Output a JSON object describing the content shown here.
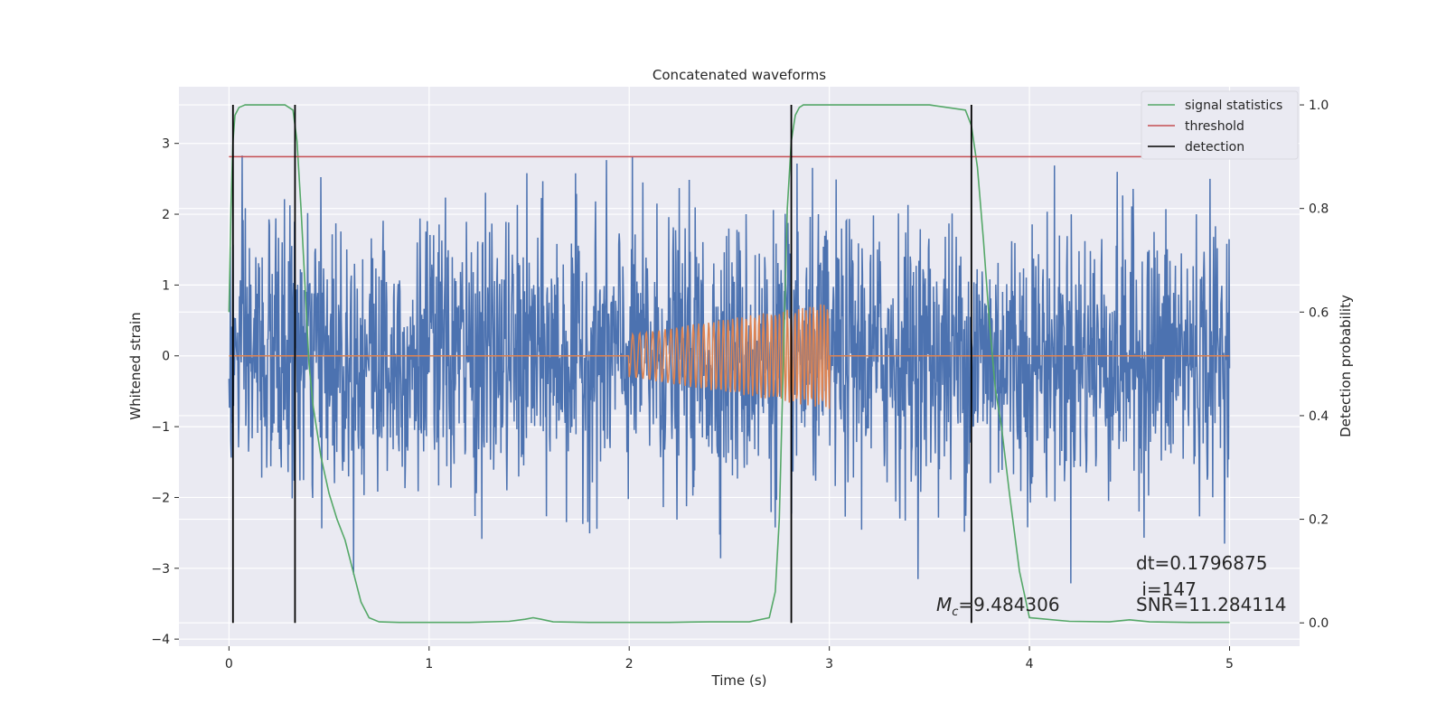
{
  "chart_data": {
    "type": "line",
    "title": "Concatenated waveforms",
    "xlabel": "Time (s)",
    "ylabel_left": "Whitened strain",
    "ylabel_right": "Detection probability",
    "xlim": [
      -0.25,
      5.35
    ],
    "ylim_left": [
      -4.1,
      3.8
    ],
    "ylim_right": [
      -0.045,
      1.035
    ],
    "x_ticks": [
      0,
      1,
      2,
      3,
      4,
      5
    ],
    "y_ticks_left": [
      -4,
      -3,
      -2,
      -1,
      0,
      1,
      2,
      3
    ],
    "y_ticks_right": [
      0.0,
      0.2,
      0.4,
      0.6,
      0.8,
      1.0
    ],
    "y_tick_labels_left": [
      "−4",
      "−3",
      "−2",
      "−1",
      "0",
      "1",
      "2",
      "3"
    ],
    "y_tick_labels_right": [
      "0.0",
      "0.2",
      "0.4",
      "0.6",
      "0.8",
      "1.0"
    ],
    "grid": true,
    "legend_position": "top-right",
    "series": [
      {
        "kind": "noise",
        "color": "#4c72b0",
        "x_range": [
          0,
          5
        ],
        "note_range_y": [
          -3.7,
          3.5
        ]
      },
      {
        "kind": "chirp",
        "color": "#dd8452",
        "x_range": [
          0,
          5
        ],
        "chirp_start": 2.0,
        "chirp_end": 3.0,
        "amplitude_start": 0.3,
        "amplitude_end": 0.75
      },
      {
        "name": "signal statistics",
        "axis": "right",
        "color": "#55a868",
        "x": [
          0,
          0.01,
          0.02,
          0.03,
          0.05,
          0.08,
          0.12,
          0.2,
          0.28,
          0.32,
          0.34,
          0.36,
          0.38,
          0.4,
          0.42,
          0.44,
          0.46,
          0.5,
          0.54,
          0.58,
          0.62,
          0.66,
          0.7,
          0.75,
          0.85,
          1.0,
          1.2,
          1.4,
          1.48,
          1.52,
          1.56,
          1.62,
          1.8,
          2.0,
          2.2,
          2.4,
          2.6,
          2.7,
          2.73,
          2.75,
          2.77,
          2.79,
          2.81,
          2.83,
          2.85,
          2.87,
          2.9,
          3.0,
          3.2,
          3.5,
          3.68,
          3.71,
          3.74,
          3.77,
          3.8,
          3.83,
          3.86,
          3.9,
          3.95,
          4.0,
          4.2,
          4.4,
          4.45,
          4.5,
          4.6,
          4.8,
          5.0
        ],
        "values": [
          0.6,
          0.8,
          0.93,
          0.98,
          0.995,
          1.0,
          1.0,
          1.0,
          1.0,
          0.99,
          0.93,
          0.8,
          0.65,
          0.5,
          0.42,
          0.37,
          0.32,
          0.25,
          0.2,
          0.16,
          0.1,
          0.04,
          0.01,
          0.002,
          0.001,
          0.001,
          0.001,
          0.003,
          0.007,
          0.01,
          0.007,
          0.002,
          0.001,
          0.001,
          0.001,
          0.002,
          0.002,
          0.01,
          0.06,
          0.2,
          0.5,
          0.8,
          0.93,
          0.98,
          0.995,
          1.0,
          1.0,
          1.0,
          1.0,
          1.0,
          0.99,
          0.96,
          0.88,
          0.74,
          0.58,
          0.45,
          0.38,
          0.25,
          0.1,
          0.01,
          0.003,
          0.002,
          0.004,
          0.006,
          0.002,
          0.001,
          0.001
        ]
      },
      {
        "name": "threshold",
        "axis": "right",
        "color": "#c44e52",
        "x": [
          0,
          5.1
        ],
        "values": [
          0.9,
          0.9
        ]
      },
      {
        "name": "detection",
        "axis": "right",
        "color": "#000000",
        "vlines_x": [
          0.02,
          0.33,
          2.81,
          3.71
        ],
        "ymin": 0.0,
        "ymax": 1.0
      }
    ],
    "annotations": {
      "mc_label": "M",
      "mc_subscript": "c",
      "mc_value": "=9.484306",
      "dt": "dt=0.1796875",
      "i": " i=147",
      "snr": "SNR=11.284114"
    },
    "colors": {
      "axes_bg": "#eaeaf2",
      "grid": "#ffffff",
      "noise": "#4c72b0",
      "chirp": "#dd8452",
      "stat": "#55a868",
      "threshold": "#c44e52",
      "detection": "#000000"
    }
  }
}
